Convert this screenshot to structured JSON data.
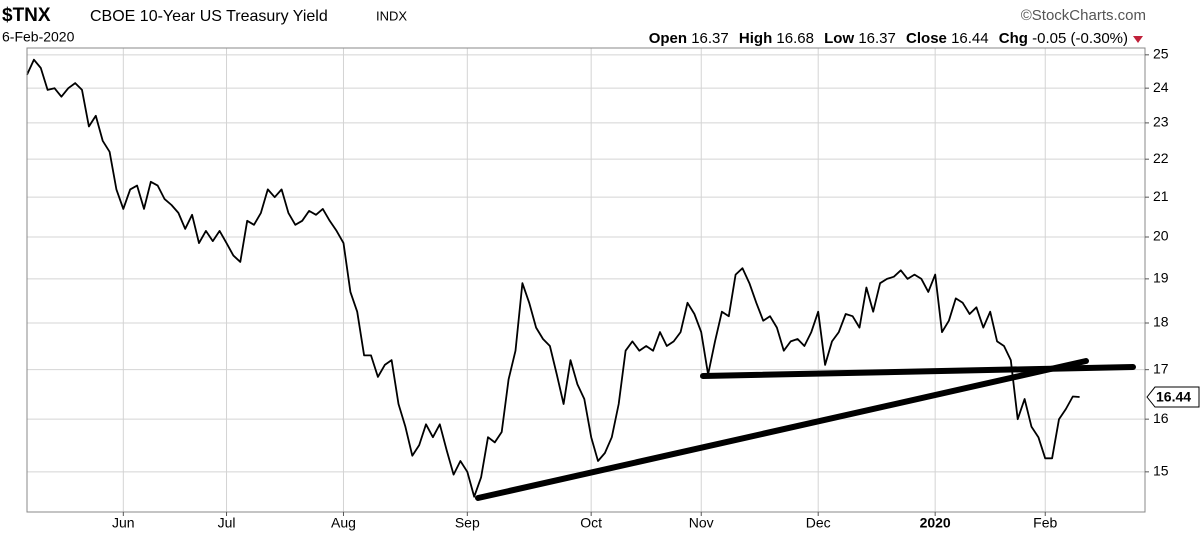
{
  "chart_data": {
    "type": "line",
    "symbol": "$TNX",
    "title": "CBOE 10-Year US Treasury Yield",
    "exchange": "INDX",
    "date": "6-Feb-2020",
    "source": "©StockCharts.com",
    "quote": {
      "open_label": "Open",
      "open": 16.37,
      "high_label": "High",
      "high": 16.68,
      "low_label": "Low",
      "low": 16.37,
      "close_label": "Close",
      "close": 16.44,
      "chg_label": "Chg",
      "chg": "-0.05 (-0.30%)"
    },
    "last_value": 16.44,
    "color": "#000000",
    "log_scale": true,
    "grid": true,
    "ylim": [
      14.28,
      25.21
    ],
    "yticks": [
      15,
      16,
      17,
      18,
      19,
      20,
      21,
      22,
      23,
      24,
      25
    ],
    "xlim": [
      0,
      162.5
    ],
    "xticks": [
      {
        "value": 14,
        "label": "Jun"
      },
      {
        "value": 29,
        "label": "Jul"
      },
      {
        "value": 46,
        "label": "Aug"
      },
      {
        "value": 64,
        "label": "Sep"
      },
      {
        "value": 82,
        "label": "Oct"
      },
      {
        "value": 98,
        "label": "Nov"
      },
      {
        "value": 115,
        "label": "Dec"
      },
      {
        "value": 132,
        "label": "2020",
        "bold": true
      },
      {
        "value": 148,
        "label": "Feb"
      }
    ],
    "values": [
      24.4,
      24.85,
      24.6,
      23.95,
      24.0,
      23.75,
      24.0,
      24.15,
      23.95,
      22.9,
      23.2,
      22.5,
      22.2,
      21.2,
      20.7,
      21.2,
      21.3,
      20.7,
      21.4,
      21.3,
      20.95,
      20.8,
      20.6,
      20.2,
      20.55,
      19.85,
      20.15,
      19.9,
      20.15,
      19.85,
      19.55,
      19.4,
      20.4,
      20.3,
      20.6,
      21.2,
      21.0,
      21.2,
      20.6,
      20.3,
      20.4,
      20.65,
      20.55,
      20.7,
      20.4,
      20.15,
      19.85,
      18.7,
      18.25,
      17.3,
      17.3,
      16.85,
      17.1,
      17.2,
      16.3,
      15.85,
      15.3,
      15.5,
      15.9,
      15.65,
      15.9,
      15.4,
      14.95,
      15.2,
      15.0,
      14.55,
      14.9,
      15.65,
      15.55,
      15.75,
      16.8,
      17.4,
      18.9,
      18.45,
      17.9,
      17.65,
      17.5,
      16.9,
      16.3,
      17.2,
      16.7,
      16.4,
      15.65,
      15.2,
      15.35,
      15.65,
      16.3,
      17.4,
      17.6,
      17.4,
      17.5,
      17.4,
      17.8,
      17.5,
      17.6,
      17.8,
      18.45,
      18.2,
      17.8,
      16.9,
      17.6,
      18.25,
      18.15,
      19.1,
      19.25,
      18.9,
      18.45,
      18.05,
      18.15,
      17.9,
      17.4,
      17.6,
      17.65,
      17.5,
      17.8,
      18.25,
      17.1,
      17.6,
      17.8,
      18.2,
      18.15,
      17.9,
      18.8,
      18.25,
      18.9,
      19.0,
      19.05,
      19.2,
      19.0,
      19.1,
      19.0,
      18.7,
      19.1,
      17.8,
      18.05,
      18.55,
      18.45,
      18.2,
      18.35,
      17.9,
      18.25,
      17.6,
      17.5,
      17.2,
      16.0,
      16.4,
      15.85,
      15.65,
      15.25,
      15.25,
      16.0,
      16.2,
      16.45,
      16.44
    ]
  }
}
